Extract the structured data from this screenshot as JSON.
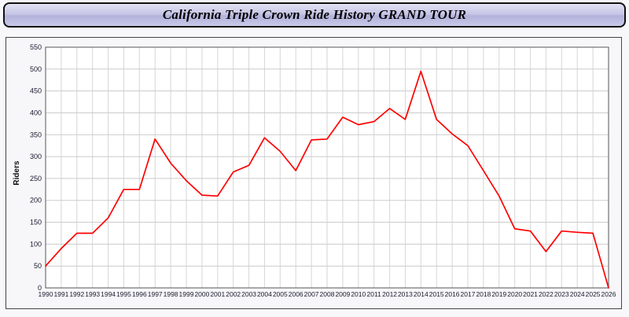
{
  "header": {
    "title": "California Triple Crown Ride History GRAND TOUR"
  },
  "colors": {
    "line": "#ff0000",
    "grid": "#cccccc",
    "grid_vertical": "#d6d6d6",
    "plot_border": "#555555",
    "tick_text": "#1a1a2e",
    "plot_bg": "#ffffff",
    "panel_bg": "#f7f7fa"
  },
  "chart_data": {
    "type": "line",
    "title": "California Triple Crown Ride History GRAND TOUR",
    "xlabel": "",
    "ylabel": "Riders",
    "ylim": [
      0,
      550
    ],
    "ytick_step": 50,
    "grid": true,
    "legend": "none",
    "x": [
      1990,
      1991,
      1992,
      1993,
      1994,
      1995,
      1996,
      1997,
      1998,
      1999,
      2000,
      2001,
      2002,
      2003,
      2004,
      2005,
      2006,
      2007,
      2008,
      2009,
      2010,
      2011,
      2012,
      2013,
      2014,
      2015,
      2016,
      2017,
      2018,
      2019,
      2020,
      2021,
      2022,
      2023,
      2024,
      2025,
      2026
    ],
    "series": [
      {
        "name": "Riders",
        "values": [
          50,
          90,
          125,
          125,
          160,
          225,
          225,
          340,
          285,
          245,
          212,
          210,
          265,
          280,
          343,
          312,
          268,
          338,
          340,
          390,
          373,
          380,
          410,
          385,
          495,
          385,
          352,
          325,
          268,
          210,
          135,
          130,
          83,
          130,
          127,
          125,
          0
        ]
      }
    ]
  }
}
